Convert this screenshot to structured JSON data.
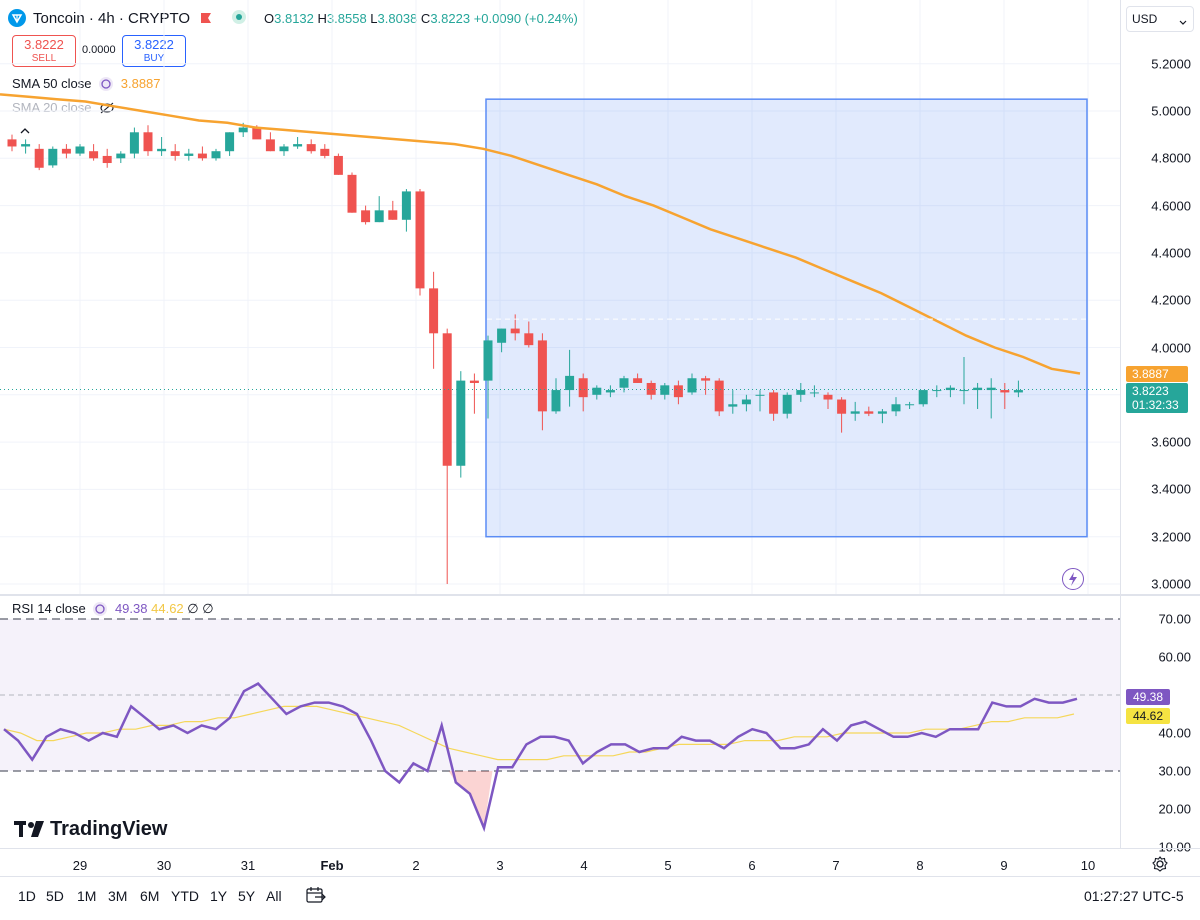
{
  "header": {
    "symbol": "Toncoin · 4h · CRYPTO",
    "o_label": "O",
    "o_value": "3.8132",
    "h_label": "H",
    "h_value": "3.8558",
    "l_label": "L",
    "l_value": "3.8038",
    "c_label": "C",
    "c_value": "3.8223",
    "change": "+0.0090 (+0.24%)",
    "currency": "USD"
  },
  "trade": {
    "sell_price": "3.8222",
    "sell_label": "SELL",
    "spread": "0.0000",
    "buy_price": "3.8222",
    "buy_label": "BUY"
  },
  "indicators": {
    "sma50_label": "SMA 50 close",
    "sma50_value": "3.8887",
    "sma20_label": "SMA 20 close",
    "rsi_label": "RSI 14 close",
    "rsi_value": "49.38",
    "rsi_ma_value": "44.62",
    "rsi_extra1": "∅",
    "rsi_extra2": "∅"
  },
  "price_axis": [
    "5.2000",
    "5.0000",
    "4.8000",
    "4.6000",
    "4.4000",
    "4.2000",
    "4.0000",
    "3.6000",
    "3.4000",
    "3.2000",
    "3.0000"
  ],
  "price_tags": {
    "sma": "3.8887",
    "last": "3.8223",
    "countdown": "01:32:33"
  },
  "rsi_axis": [
    "70.00",
    "60.00",
    "40.00",
    "30.00",
    "20.00",
    "10.00"
  ],
  "rsi_tags": {
    "rsi": "49.38",
    "ma": "44.62"
  },
  "time_axis": [
    "29",
    "30",
    "31",
    "Feb",
    "2",
    "3",
    "4",
    "5",
    "6",
    "7",
    "8",
    "9",
    "10"
  ],
  "ranges": [
    "1D",
    "5D",
    "1M",
    "3M",
    "6M",
    "YTD",
    "1Y",
    "5Y",
    "All"
  ],
  "clock": "01:27:27 UTC-5",
  "brand": "TradingView",
  "colors": {
    "up": "#26a69a",
    "down": "#ef5350",
    "sma": "#f7a330",
    "rsi": "#7e57c2",
    "rsi_ma": "#f5d75a",
    "box": "#5b8cf5"
  },
  "chart_data": [
    {
      "type": "candlestick",
      "title": "Toncoin · 4h · CRYPTO",
      "ylim": [
        3.0,
        5.25
      ],
      "candles": [
        [
          4.88,
          4.9,
          4.83,
          4.85
        ],
        [
          4.85,
          4.88,
          4.82,
          4.86
        ],
        [
          4.84,
          4.86,
          4.75,
          4.76
        ],
        [
          4.77,
          4.85,
          4.76,
          4.84
        ],
        [
          4.84,
          4.86,
          4.8,
          4.82
        ],
        [
          4.82,
          4.86,
          4.81,
          4.85
        ],
        [
          4.83,
          4.86,
          4.79,
          4.8
        ],
        [
          4.81,
          4.84,
          4.76,
          4.78
        ],
        [
          4.8,
          4.83,
          4.78,
          4.82
        ],
        [
          4.82,
          4.93,
          4.8,
          4.91
        ],
        [
          4.91,
          4.94,
          4.81,
          4.83
        ],
        [
          4.83,
          4.89,
          4.81,
          4.84
        ],
        [
          4.83,
          4.86,
          4.79,
          4.81
        ],
        [
          4.81,
          4.84,
          4.79,
          4.82
        ],
        [
          4.82,
          4.85,
          4.79,
          4.8
        ],
        [
          4.8,
          4.84,
          4.79,
          4.83
        ],
        [
          4.83,
          4.91,
          4.81,
          4.91
        ],
        [
          4.91,
          4.95,
          4.89,
          4.93
        ],
        [
          4.93,
          4.94,
          4.89,
          4.88
        ],
        [
          4.88,
          4.91,
          4.83,
          4.83
        ],
        [
          4.83,
          4.86,
          4.81,
          4.85
        ],
        [
          4.85,
          4.89,
          4.84,
          4.86
        ],
        [
          4.86,
          4.88,
          4.82,
          4.83
        ],
        [
          4.84,
          4.86,
          4.8,
          4.81
        ],
        [
          4.81,
          4.82,
          4.73,
          4.73
        ],
        [
          4.73,
          4.74,
          4.57,
          4.57
        ],
        [
          4.58,
          4.6,
          4.52,
          4.53
        ],
        [
          4.53,
          4.64,
          4.53,
          4.58
        ],
        [
          4.58,
          4.62,
          4.54,
          4.54
        ],
        [
          4.54,
          4.67,
          4.49,
          4.66
        ],
        [
          4.66,
          4.67,
          4.22,
          4.25
        ],
        [
          4.25,
          4.32,
          3.91,
          4.06
        ],
        [
          4.06,
          4.08,
          3.0,
          3.5
        ],
        [
          3.5,
          3.9,
          3.45,
          3.86
        ],
        [
          3.86,
          3.89,
          3.72,
          3.85
        ],
        [
          3.86,
          4.05,
          3.7,
          4.03
        ],
        [
          4.02,
          4.08,
          3.98,
          4.08
        ],
        [
          4.08,
          4.14,
          4.03,
          4.06
        ],
        [
          4.06,
          4.11,
          4.0,
          4.01
        ],
        [
          4.03,
          4.06,
          3.65,
          3.73
        ],
        [
          3.73,
          3.87,
          3.72,
          3.82
        ],
        [
          3.82,
          3.99,
          3.75,
          3.88
        ],
        [
          3.87,
          3.89,
          3.73,
          3.79
        ],
        [
          3.8,
          3.84,
          3.78,
          3.83
        ],
        [
          3.81,
          3.84,
          3.79,
          3.82
        ],
        [
          3.83,
          3.88,
          3.81,
          3.87
        ],
        [
          3.87,
          3.89,
          3.85,
          3.85
        ],
        [
          3.85,
          3.86,
          3.78,
          3.8
        ],
        [
          3.8,
          3.85,
          3.78,
          3.84
        ],
        [
          3.84,
          3.86,
          3.76,
          3.79
        ],
        [
          3.81,
          3.89,
          3.8,
          3.87
        ],
        [
          3.87,
          3.88,
          3.8,
          3.86
        ],
        [
          3.86,
          3.87,
          3.71,
          3.73
        ],
        [
          3.75,
          3.82,
          3.72,
          3.76
        ],
        [
          3.76,
          3.8,
          3.73,
          3.78
        ],
        [
          3.8,
          3.82,
          3.73,
          3.8
        ],
        [
          3.81,
          3.82,
          3.69,
          3.72
        ],
        [
          3.72,
          3.81,
          3.7,
          3.8
        ],
        [
          3.8,
          3.85,
          3.77,
          3.82
        ],
        [
          3.81,
          3.84,
          3.79,
          3.81
        ],
        [
          3.8,
          3.81,
          3.74,
          3.78
        ],
        [
          3.78,
          3.79,
          3.64,
          3.72
        ],
        [
          3.72,
          3.77,
          3.69,
          3.73
        ],
        [
          3.73,
          3.75,
          3.71,
          3.72
        ],
        [
          3.72,
          3.74,
          3.68,
          3.73
        ],
        [
          3.73,
          3.79,
          3.71,
          3.76
        ],
        [
          3.76,
          3.77,
          3.74,
          3.76
        ],
        [
          3.76,
          3.81,
          3.75,
          3.82
        ],
        [
          3.82,
          3.84,
          3.79,
          3.82
        ],
        [
          3.82,
          3.84,
          3.79,
          3.83
        ],
        [
          3.82,
          3.96,
          3.76,
          3.82
        ],
        [
          3.82,
          3.85,
          3.74,
          3.83
        ],
        [
          3.82,
          3.87,
          3.7,
          3.83
        ],
        [
          3.82,
          3.85,
          3.74,
          3.81
        ],
        [
          3.81,
          3.86,
          3.79,
          3.82
        ]
      ],
      "sma50": [
        5.07,
        5.06,
        5.05,
        5.04,
        5.02,
        5.0,
        4.98,
        4.96,
        4.95,
        4.93,
        4.92,
        4.91,
        4.9,
        4.89,
        4.88,
        4.87,
        4.86,
        4.84,
        4.81,
        4.77,
        4.73,
        4.69,
        4.64,
        4.6,
        4.55,
        4.5,
        4.46,
        4.42,
        4.38,
        4.33,
        4.28,
        4.23,
        4.17,
        4.11,
        4.05,
        4.0,
        3.96,
        3.91,
        3.89
      ],
      "last_price": 3.8223
    },
    {
      "type": "line",
      "title": "RSI 14 close",
      "ylim": [
        10,
        70
      ],
      "series": [
        {
          "name": "RSI",
          "values": [
            41,
            38,
            33,
            39,
            41,
            40,
            38,
            40,
            39,
            47,
            44,
            41,
            42,
            40,
            42,
            41,
            44,
            51,
            53,
            49,
            45,
            47,
            48,
            48,
            47,
            45,
            38,
            30,
            27,
            32,
            30,
            42,
            27,
            24,
            15,
            31,
            31,
            37,
            39,
            39,
            38,
            32,
            35,
            37,
            37,
            35,
            36,
            36,
            39,
            38,
            38,
            36,
            39,
            41,
            40,
            36,
            36,
            37,
            41,
            38,
            42,
            43,
            41,
            39,
            39,
            40,
            39,
            41,
            41,
            41,
            48,
            47,
            47,
            49,
            48,
            48,
            49
          ]
        },
        {
          "name": "RSI MA",
          "values": [
            41,
            40,
            38,
            38,
            39,
            40,
            40,
            41,
            41,
            42,
            42,
            43,
            43,
            44,
            44,
            45,
            46,
            47,
            47,
            47,
            46,
            45,
            44,
            43,
            42,
            40,
            38,
            36,
            35,
            34,
            33,
            33,
            33,
            33,
            34,
            34,
            34,
            34,
            35,
            35,
            36,
            37,
            37,
            37,
            37,
            38,
            38,
            38,
            39,
            39,
            39,
            40,
            40,
            40,
            40,
            40,
            41,
            41,
            41,
            42,
            43,
            43,
            44,
            44,
            44,
            45
          ]
        }
      ]
    }
  ]
}
